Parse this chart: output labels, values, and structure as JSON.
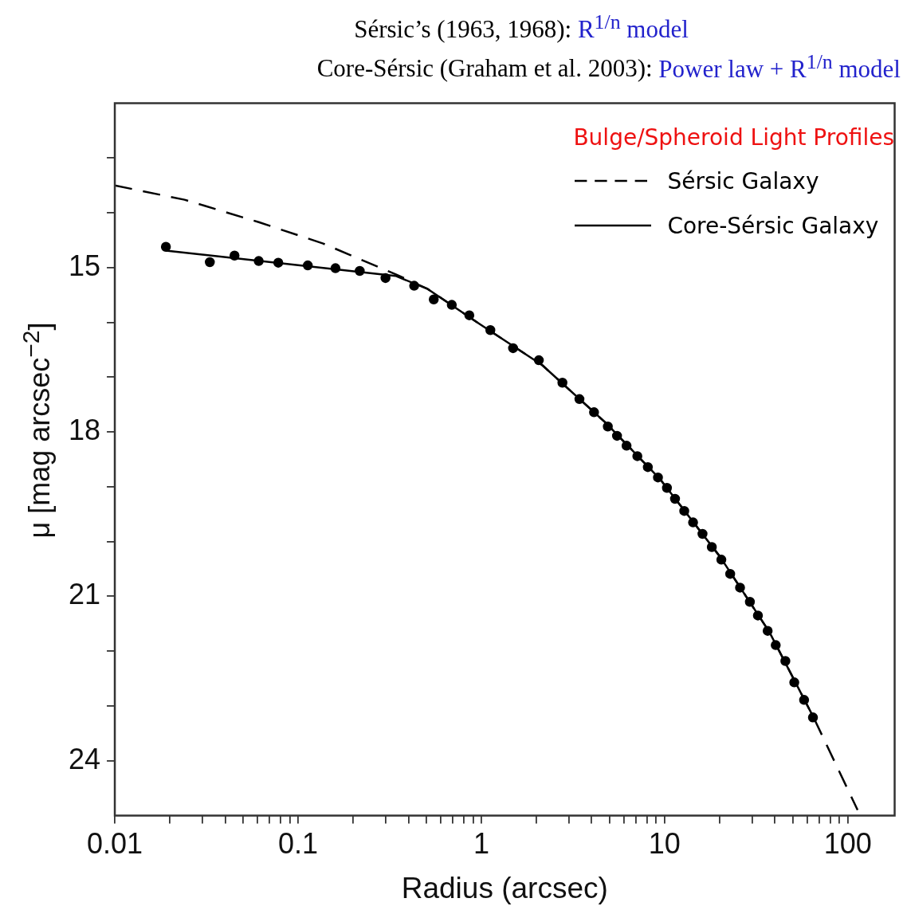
{
  "chart_data": {
    "type": "scatter",
    "title": "Sérsic’s (1963, 1968): R$^{1/n}$ model",
    "subtitle": "Core-Sérsic (Graham et al. 2003): Power law + R$^{1/n}$ model",
    "xlabel": "Radius (arcsec)",
    "ylabel": "μ [mag arcsec$^{−2}$]",
    "legend_title": "Bulge/Spheroid Light Profiles",
    "legend": "top right",
    "log": "x",
    "grid": false,
    "xlim": [
      0.01,
      180
    ],
    "xticks": [
      0.01,
      {
        "value": 0.02,
        "label": null
      },
      {
        "value": 0.03,
        "label": null
      },
      {
        "value": 0.04,
        "label": null
      },
      {
        "value": 0.05,
        "label": null
      },
      {
        "value": 0.06,
        "label": null
      },
      {
        "value": 0.07,
        "label": null
      },
      {
        "value": 0.08,
        "label": null
      },
      {
        "value": 0.09,
        "label": null
      },
      0.1,
      {
        "value": 0.2,
        "label": null
      },
      {
        "value": 0.3,
        "label": null
      },
      {
        "value": 0.4,
        "label": null
      },
      {
        "value": 0.5,
        "label": null
      },
      {
        "value": 0.6,
        "label": null
      },
      {
        "value": 0.7,
        "label": null
      },
      {
        "value": 0.8,
        "label": null
      },
      {
        "value": 0.9,
        "label": null
      },
      1,
      {
        "value": 2,
        "label": null
      },
      {
        "value": 3,
        "label": null
      },
      {
        "value": 4,
        "label": null
      },
      {
        "value": 5,
        "label": null
      },
      {
        "value": 6,
        "label": null
      },
      {
        "value": 7,
        "label": null
      },
      {
        "value": 8,
        "label": null
      },
      {
        "value": 9,
        "label": null
      },
      10,
      {
        "value": 20,
        "label": null
      },
      {
        "value": 30,
        "label": null
      },
      {
        "value": 40,
        "label": null
      },
      {
        "value": 50,
        "label": null
      },
      {
        "value": 60,
        "label": null
      },
      {
        "value": 70,
        "label": null
      },
      {
        "value": 80,
        "label": null
      },
      {
        "value": 90,
        "label": null
      },
      100
    ],
    "ylim": [
      25,
      12
    ],
    "yticks": [
      {
        "value": 13,
        "label": null
      },
      {
        "value": 14,
        "label": null
      },
      15,
      {
        "value": 16,
        "label": null
      },
      {
        "value": 17,
        "label": null
      },
      18,
      {
        "value": 19,
        "label": null
      },
      {
        "value": 20,
        "label": null
      },
      21,
      {
        "value": 22,
        "label": null
      },
      {
        "value": 23,
        "label": null
      },
      24
    ],
    "series": [
      {
        "type": "line",
        "name": "Sérsic Galaxy",
        "color": "#000000",
        "line_style": "dashed",
        "marker": "none",
        "x": [
          0.01,
          0.024,
          0.061,
          0.137,
          0.34,
          0.51,
          0.97,
          2.15,
          4.8,
          9.5,
          20.1,
          37.3,
          65,
          113
        ],
        "values": [
          13.5,
          13.76,
          14.17,
          14.56,
          15.12,
          15.39,
          16.02,
          16.78,
          17.84,
          18.87,
          20.28,
          21.65,
          23.21,
          24.9
        ]
      },
      {
        "type": "line",
        "name": "Core-Sérsic Galaxy",
        "color": "#000000",
        "line_style": "solid",
        "marker": "none",
        "x": [
          0.019,
          0.34,
          0.51,
          0.97,
          2.15,
          4.8,
          9.5,
          20.1,
          37.3,
          65
        ],
        "values": [
          14.69,
          15.15,
          15.39,
          16.02,
          16.78,
          17.84,
          18.87,
          20.28,
          21.65,
          23.21
        ]
      },
      {
        "type": "scatter",
        "color": "#000000",
        "marker": "circle",
        "x": [
          0.019,
          0.033,
          0.045,
          0.061,
          0.078,
          0.113,
          0.16,
          0.217,
          0.3,
          0.43,
          0.55,
          0.69,
          0.86,
          1.12,
          1.49,
          2.06,
          2.77,
          3.43,
          4.12,
          4.9,
          5.5,
          6.2,
          7.1,
          8.1,
          9.2,
          10.3,
          11.4,
          12.8,
          14.3,
          16.1,
          18.1,
          20.4,
          22.8,
          25.8,
          29.2,
          32.3,
          36.5,
          40.4,
          45.6,
          51,
          57.7,
          64.5
        ],
        "values": [
          14.62,
          14.9,
          14.78,
          14.88,
          14.91,
          14.96,
          15.01,
          15.06,
          15.19,
          15.33,
          15.58,
          15.68,
          15.87,
          16.14,
          16.47,
          16.69,
          17.1,
          17.4,
          17.64,
          17.9,
          18.07,
          18.25,
          18.44,
          18.64,
          18.83,
          19.02,
          19.22,
          19.44,
          19.65,
          19.86,
          20.1,
          20.33,
          20.59,
          20.84,
          21.1,
          21.35,
          21.63,
          21.89,
          22.18,
          22.57,
          22.89,
          23.21
        ]
      }
    ]
  }
}
